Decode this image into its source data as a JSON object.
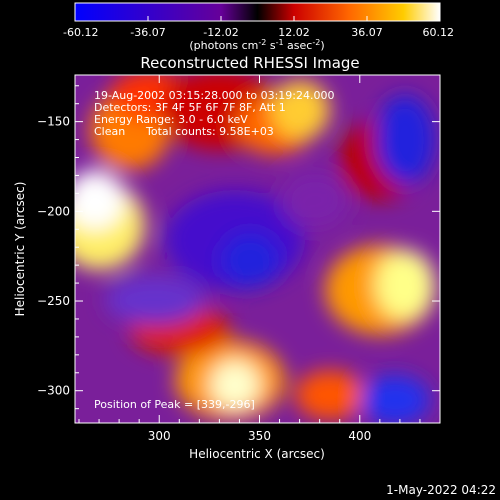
{
  "chart_data": {
    "type": "heatmap",
    "title": "Reconstructed RHESSI Image",
    "xlabel": "Heliocentric X (arcsec)",
    "ylabel": "Heliocentric Y (arcsec)",
    "xlim": [
      258,
      440
    ],
    "ylim": [
      -318,
      -124
    ],
    "x_ticks": [
      300,
      350,
      400
    ],
    "y_ticks": [
      -150,
      -200,
      -250,
      -300
    ],
    "colorbar": {
      "ticks": [
        "-60.12",
        "-36.07",
        "-12.02",
        "12.02",
        "36.07",
        "60.12"
      ],
      "range": [
        -60.12,
        60.12
      ],
      "units_prefix": "(photons cm",
      "units_exp1": "-2",
      "units_mid1": " s",
      "units_exp2": "-1",
      "units_mid2": " asec",
      "units_exp3": "-2",
      "units_suffix": ")"
    },
    "annotations": {
      "time_range": "19-Aug-2002 03:15:28.000 to 03:19:24.000",
      "detectors": "Detectors: 3F 4F 5F 6F 7F 8F, Att 1",
      "energy": "Energy Range: 3.0 - 6.0 keV",
      "method": "Clean",
      "total_counts": "Total counts: 9.58E+03",
      "peak": "Position of Peak = [339,-296]"
    },
    "peak": [
      339,
      -296
    ],
    "footer_date": "1-May-2022 04:22"
  }
}
